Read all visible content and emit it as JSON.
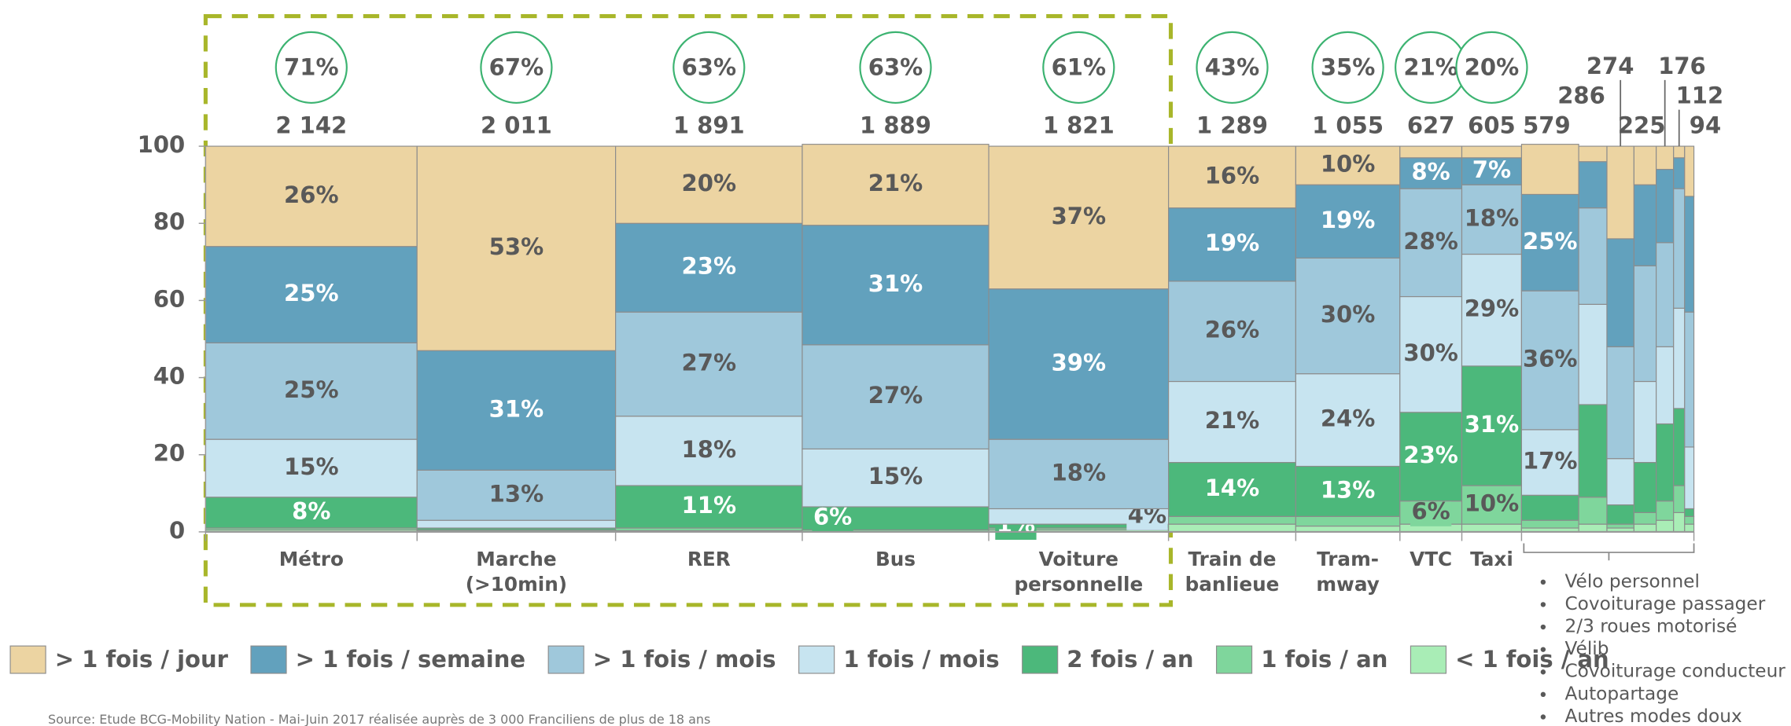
{
  "chart_data": {
    "type": "marimekko",
    "categories": [
      [
        "Métro"
      ],
      [
        "Marche",
        "(>10min)"
      ],
      [
        "RER"
      ],
      [
        "Bus"
      ],
      [
        "Voiture",
        "personnelle"
      ],
      [
        "Train de",
        "banlieue"
      ],
      [
        "Tram-",
        "mway"
      ],
      [
        "VTC"
      ],
      [
        "Taxi"
      ],
      null,
      null,
      null,
      null,
      null,
      null,
      null
    ],
    "widths": [
      2142,
      2011,
      1891,
      1889,
      1821,
      1289,
      1055,
      627,
      605,
      579,
      286,
      274,
      225,
      176,
      112,
      94
    ],
    "width_labels": [
      "2 142",
      "2 011",
      "1 891",
      "1 889",
      "1 821",
      "1 289",
      "1 055",
      "627",
      "605",
      "579",
      "286",
      "274",
      "225",
      "176",
      "112",
      "94"
    ],
    "shares": [
      71,
      67,
      63,
      63,
      61,
      43,
      35,
      21,
      20,
      null,
      null,
      null,
      null,
      null,
      null,
      null
    ],
    "share_labels": [
      "71%",
      "67%",
      "63%",
      "63%",
      "61%",
      "43%",
      "35%",
      "21%",
      "20%",
      null,
      null,
      null,
      null,
      null,
      null,
      null
    ],
    "others_list": [
      "Vélo personnel",
      "Covoiturage passager",
      "2/3 roues motorisé",
      "Vélib",
      "Covoiturage conducteur",
      "Autopartage",
      "Autres modes doux"
    ],
    "ylim": [
      0,
      100
    ],
    "yticks": [
      0,
      20,
      40,
      60,
      80,
      100
    ],
    "series": [
      {
        "name": "> 1 fois / jour",
        "color": "#ecd4a2",
        "text_color": "#595959",
        "values": [
          26,
          53,
          20,
          21,
          37,
          16,
          10,
          3,
          3,
          13,
          4,
          24,
          10,
          6,
          3,
          13
        ],
        "value_labels": [
          "26%",
          "53%",
          "20%",
          "21%",
          "37%",
          "16%",
          "10%",
          null,
          null,
          null,
          null,
          null,
          null,
          null,
          null,
          null
        ]
      },
      {
        "name": "> 1 fois / semaine",
        "color": "#62a1bd",
        "text_color": "#ffffff",
        "values": [
          25,
          31,
          23,
          31,
          39,
          19,
          19,
          8,
          7,
          25,
          12,
          28,
          21,
          19,
          8,
          30
        ],
        "value_labels": [
          "25%",
          "31%",
          "23%",
          "31%",
          "39%",
          "19%",
          "19%",
          "8%",
          "7%",
          "25%",
          null,
          null,
          null,
          null,
          null,
          null
        ]
      },
      {
        "name": "> 1 fois / mois",
        "color": "#9fc8db",
        "text_color": "#595959",
        "values": [
          25,
          13,
          27,
          27,
          18,
          26,
          30,
          28,
          18,
          36,
          25,
          29,
          30,
          27,
          31,
          35
        ],
        "value_labels": [
          "25%",
          "13%",
          "27%",
          "27%",
          "18%",
          "26%",
          "30%",
          "28%",
          "18%",
          "36%",
          null,
          null,
          null,
          null,
          null,
          null
        ]
      },
      {
        "name": "1 fois / mois",
        "color": "#c7e4f0",
        "text_color": "#595959",
        "values": [
          15,
          2,
          18,
          15,
          4,
          21,
          24,
          30,
          29,
          17,
          26,
          12,
          21,
          20,
          26,
          16
        ],
        "value_labels": [
          "15%",
          null,
          "18%",
          "15%",
          "4%",
          "21%",
          "24%",
          "30%",
          "29%",
          "17%",
          null,
          null,
          null,
          null,
          null,
          null
        ]
      },
      {
        "name": "2 fois / an",
        "color": "#4cb87b",
        "text_color": "#ffffff",
        "values": [
          8,
          0.5,
          11,
          6,
          1,
          14,
          13,
          23,
          31,
          6.5,
          24,
          5,
          13,
          20,
          20,
          2
        ],
        "value_labels": [
          "8%",
          null,
          "11%",
          "6%",
          "1%",
          "14%",
          "13%",
          "23%",
          "31%",
          null,
          null,
          null,
          null,
          null,
          null,
          null
        ]
      },
      {
        "name": "1 fois / an",
        "color": "#7fd69c",
        "text_color": "#595959",
        "values": [
          0.5,
          0.3,
          0.7,
          0.5,
          0.5,
          2,
          2.5,
          6,
          10,
          2,
          7,
          1,
          3,
          5,
          7,
          2
        ],
        "value_labels": [
          null,
          null,
          null,
          null,
          null,
          null,
          null,
          "6%",
          "10%",
          null,
          null,
          null,
          null,
          null,
          null,
          null
        ]
      },
      {
        "name": "< 1 fois / an",
        "color": "#a9edb6",
        "text_color": "#595959",
        "values": [
          0.5,
          0.2,
          0.3,
          0,
          0.5,
          2,
          1.5,
          2,
          2,
          1,
          2,
          1,
          2,
          3,
          5,
          2
        ],
        "value_labels": [
          null,
          null,
          null,
          null,
          null,
          null,
          null,
          null,
          null,
          null,
          null,
          null,
          null,
          null,
          null,
          null
        ]
      }
    ],
    "source": "Source: Etude BCG-Mobility Nation - Mai-Juin 2017 réalisée auprès de 3 000 Franciliens de plus de 18 ans"
  }
}
